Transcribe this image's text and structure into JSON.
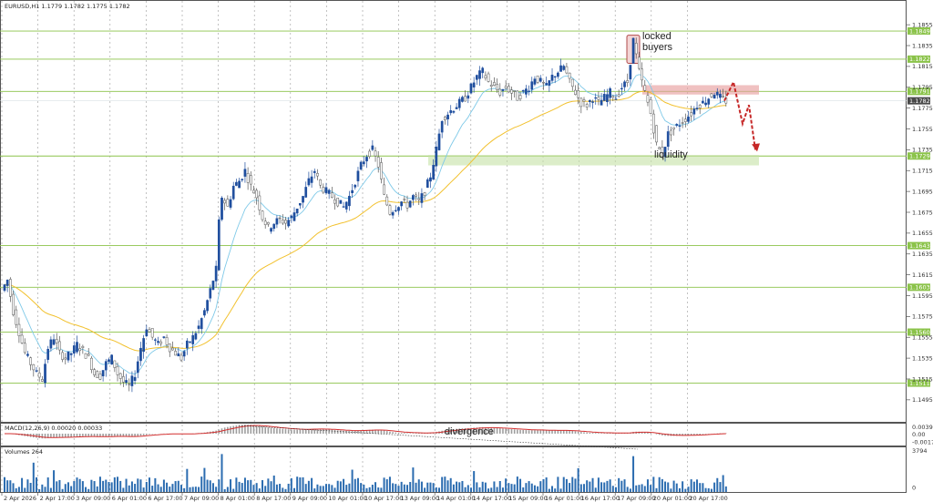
{
  "chart_data": {
    "type": "candlestick",
    "header": "EURUSD,H1  1.1779 1.1782 1.1775 1.1782",
    "current_price": "1.1782",
    "crosshair_price": "1.1791",
    "ylim": [
      1.148,
      1.187
    ],
    "y_ticks": [
      "1.1855",
      "1.1835",
      "1.1815",
      "1.1795",
      "1.1775",
      "1.1755",
      "1.1735",
      "1.1715",
      "1.1695",
      "1.1675",
      "1.1655",
      "1.1635",
      "1.1615",
      "1.1595",
      "1.1575",
      "1.1555",
      "1.1535",
      "1.1515",
      "1.1495"
    ],
    "x_ticks": [
      "2 Apr 2026",
      "2 Apr 17:00",
      "3 Apr 09:00",
      "6 Apr 01:00",
      "6 Apr 17:00",
      "7 Apr 09:00",
      "8 Apr 01:00",
      "8 Apr 17:00",
      "9 Apr 09:00",
      "10 Apr 01:00",
      "10 Apr 17:00",
      "13 Apr 09:00",
      "14 Apr 01:00",
      "14 Apr 17:00",
      "15 Apr 09:00",
      "16 Apr 01:00",
      "16 Apr 17:00",
      "17 Apr 09:00",
      "20 Apr 01:00",
      "20 Apr 17:00"
    ],
    "levels": [
      {
        "price": 1.1849,
        "label": "1.1849"
      },
      {
        "price": 1.1822,
        "label": "1.1822"
      },
      {
        "price": 1.1791,
        "label": "1.1791"
      },
      {
        "price": 1.1729,
        "label": "1.1729"
      },
      {
        "price": 1.1643,
        "label": "1.1643"
      },
      {
        "price": 1.1603,
        "label": "1.1603"
      },
      {
        "price": 1.156,
        "label": "1.1560"
      },
      {
        "price": 1.1511,
        "label": "1.1511"
      }
    ],
    "price_path": [
      [
        0,
        1.16
      ],
      [
        2,
        1.161
      ],
      [
        4,
        1.158
      ],
      [
        6,
        1.156
      ],
      [
        8,
        1.154
      ],
      [
        10,
        1.153
      ],
      [
        12,
        1.152
      ],
      [
        14,
        1.1515
      ],
      [
        16,
        1.1545
      ],
      [
        18,
        1.1555
      ],
      [
        20,
        1.154
      ],
      [
        22,
        1.1535
      ],
      [
        24,
        1.154
      ],
      [
        26,
        1.1548
      ],
      [
        28,
        1.1542
      ],
      [
        30,
        1.1535
      ],
      [
        32,
        1.152
      ],
      [
        34,
        1.1518
      ],
      [
        36,
        1.153
      ],
      [
        38,
        1.1535
      ],
      [
        40,
        1.152
      ],
      [
        42,
        1.1512
      ],
      [
        44,
        1.1508
      ],
      [
        46,
        1.152
      ],
      [
        48,
        1.1545
      ],
      [
        50,
        1.1565
      ],
      [
        52,
        1.1555
      ],
      [
        54,
        1.1548
      ],
      [
        56,
        1.1555
      ],
      [
        58,
        1.1545
      ],
      [
        60,
        1.154
      ],
      [
        62,
        1.1535
      ],
      [
        64,
        1.1548
      ],
      [
        66,
        1.1555
      ],
      [
        68,
        1.1565
      ],
      [
        70,
        1.158
      ],
      [
        72,
        1.16
      ],
      [
        74,
        1.162
      ],
      [
        75,
        1.1665
      ],
      [
        76,
        1.169
      ],
      [
        78,
        1.168
      ],
      [
        80,
        1.17
      ],
      [
        82,
        1.1705
      ],
      [
        84,
        1.1715
      ],
      [
        86,
        1.17
      ],
      [
        88,
        1.169
      ],
      [
        90,
        1.167
      ],
      [
        92,
        1.166
      ],
      [
        94,
        1.1665
      ],
      [
        96,
        1.1668
      ],
      [
        98,
        1.1665
      ],
      [
        100,
        1.167
      ],
      [
        102,
        1.168
      ],
      [
        104,
        1.169
      ],
      [
        106,
        1.1705
      ],
      [
        108,
        1.1715
      ],
      [
        110,
        1.17
      ],
      [
        112,
        1.1695
      ],
      [
        114,
        1.169
      ],
      [
        116,
        1.1685
      ],
      [
        118,
        1.168
      ],
      [
        120,
        1.169
      ],
      [
        122,
        1.1705
      ],
      [
        124,
        1.172
      ],
      [
        126,
        1.173
      ],
      [
        128,
        1.1735
      ],
      [
        130,
        1.172
      ],
      [
        132,
        1.169
      ],
      [
        134,
        1.1675
      ],
      [
        136,
        1.168
      ],
      [
        138,
        1.1685
      ],
      [
        140,
        1.1682
      ],
      [
        142,
        1.169
      ],
      [
        144,
        1.1685
      ],
      [
        146,
        1.1695
      ],
      [
        148,
        1.171
      ],
      [
        150,
        1.1735
      ],
      [
        152,
        1.1765
      ],
      [
        154,
        1.177
      ],
      [
        156,
        1.1775
      ],
      [
        158,
        1.178
      ],
      [
        160,
        1.1785
      ],
      [
        162,
        1.1795
      ],
      [
        164,
        1.1805
      ],
      [
        166,
        1.181
      ],
      [
        168,
        1.18
      ],
      [
        170,
        1.1795
      ],
      [
        172,
        1.179
      ],
      [
        174,
        1.1795
      ],
      [
        176,
        1.179
      ],
      [
        178,
        1.1785
      ],
      [
        180,
        1.179
      ],
      [
        182,
        1.1795
      ],
      [
        184,
        1.1805
      ],
      [
        186,
        1.18
      ],
      [
        188,
        1.1795
      ],
      [
        190,
        1.1805
      ],
      [
        192,
        1.181
      ],
      [
        194,
        1.1815
      ],
      [
        196,
        1.18
      ],
      [
        198,
        1.179
      ],
      [
        200,
        1.178
      ],
      [
        202,
        1.1778
      ],
      [
        204,
        1.1785
      ],
      [
        206,
        1.178
      ],
      [
        208,
        1.1785
      ],
      [
        210,
        1.179
      ],
      [
        212,
        1.1785
      ],
      [
        214,
        1.1795
      ],
      [
        216,
        1.18
      ],
      [
        218,
        1.184
      ],
      [
        220,
        1.181
      ],
      [
        222,
        1.179
      ],
      [
        224,
        1.177
      ],
      [
        226,
        1.174
      ],
      [
        228,
        1.173
      ],
      [
        230,
        1.175
      ],
      [
        232,
        1.1755
      ],
      [
        234,
        1.176
      ],
      [
        236,
        1.1765
      ],
      [
        238,
        1.177
      ],
      [
        240,
        1.1778
      ],
      [
        242,
        1.178
      ],
      [
        244,
        1.1785
      ],
      [
        246,
        1.179
      ],
      [
        248,
        1.1785
      ],
      [
        250,
        1.1782
      ]
    ],
    "macd_header": "MACD(12,26,9) 0.00020 0.00033",
    "macd_ticks": [
      "0.00393",
      "0.00",
      "-0.00176"
    ],
    "volume_header": "Volumes 264",
    "volume_ticks": [
      "3794",
      "0"
    ],
    "annotations": {
      "locked": "locked",
      "buyers": "buyers",
      "liquidity": "liquidity",
      "divergence": "divergence"
    },
    "colors": {
      "bull": "#1f4e9e",
      "ema_fast": "#7fc9e8",
      "ema_slow": "#f2c12e",
      "level": "#8bc34a",
      "macd_signal": "#d32f2f",
      "macd_hist": "#9e9e9e",
      "volume": "#2b6cb0",
      "arrow": "#c62828"
    }
  }
}
